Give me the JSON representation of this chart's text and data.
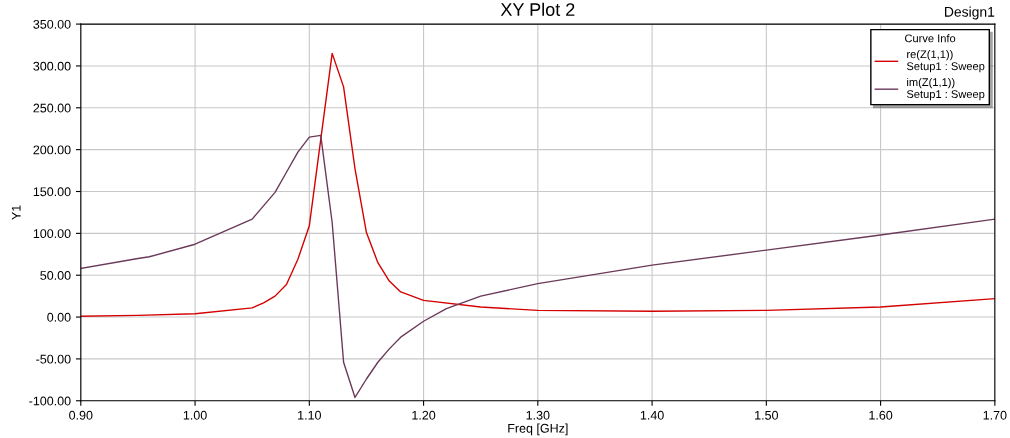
{
  "chart_data": {
    "type": "line",
    "title": "XY Plot 2",
    "xlabel": "Freq [GHz]",
    "ylabel": "Y1",
    "legend_title": "Curve Info",
    "annotations": [
      "Design1"
    ],
    "xlim": [
      0.9,
      1.7
    ],
    "ylim": [
      -100,
      350
    ],
    "xticks": [
      {
        "value": 0.9,
        "label": "0.90"
      },
      {
        "value": 1.0,
        "label": "1.00"
      },
      {
        "value": 1.1,
        "label": "1.10"
      },
      {
        "value": 1.2,
        "label": "1.20"
      },
      {
        "value": 1.3,
        "label": "1.30"
      },
      {
        "value": 1.4,
        "label": "1.40"
      },
      {
        "value": 1.5,
        "label": "1.50"
      },
      {
        "value": 1.6,
        "label": "1.60"
      },
      {
        "value": 1.7,
        "label": "1.70"
      }
    ],
    "yticks": [
      {
        "value": -100,
        "label": "-100.00"
      },
      {
        "value": -50,
        "label": "-50.00"
      },
      {
        "value": 0,
        "label": "0.00"
      },
      {
        "value": 50,
        "label": "50.00"
      },
      {
        "value": 100,
        "label": "100.00"
      },
      {
        "value": 150,
        "label": "150.00"
      },
      {
        "value": 200,
        "label": "200.00"
      },
      {
        "value": 250,
        "label": "250.00"
      },
      {
        "value": 300,
        "label": "300.00"
      },
      {
        "value": 350,
        "label": "350.00"
      }
    ],
    "grid": true,
    "legend": "top right",
    "marker": "none",
    "line_style": "solid",
    "series": [
      {
        "name": "re(Z(1,1))\nSetup1 : Sweep",
        "color": "#d40000",
        "x": [
          0.9,
          0.95,
          1.0,
          1.05,
          1.06,
          1.07,
          1.08,
          1.09,
          1.1,
          1.11,
          1.12,
          1.13,
          1.14,
          1.15,
          1.16,
          1.17,
          1.18,
          1.2,
          1.25,
          1.3,
          1.4,
          1.5,
          1.6,
          1.7
        ],
        "values": [
          1,
          2,
          4,
          11,
          17,
          25,
          39,
          69,
          109,
          212,
          315,
          275,
          177,
          101,
          65,
          43,
          30,
          20,
          12,
          8,
          7,
          8,
          12,
          22
        ]
      },
      {
        "name": "im(Z(1,1))\nSetup1 : Sweep",
        "color": "#6b3a5a",
        "x": [
          0.9,
          0.95,
          0.96,
          1.0,
          1.05,
          1.07,
          1.08,
          1.09,
          1.1,
          1.11,
          1.12,
          1.13,
          1.14,
          1.15,
          1.16,
          1.17,
          1.18,
          1.2,
          1.22,
          1.25,
          1.3,
          1.4,
          1.5,
          1.6,
          1.7
        ],
        "values": [
          58,
          70,
          72,
          87,
          117,
          149,
          173,
          197,
          215,
          217,
          113,
          -54,
          -96,
          -74,
          -54,
          -38,
          -24,
          -5,
          10,
          25,
          40,
          62,
          80,
          98,
          117
        ]
      }
    ]
  }
}
